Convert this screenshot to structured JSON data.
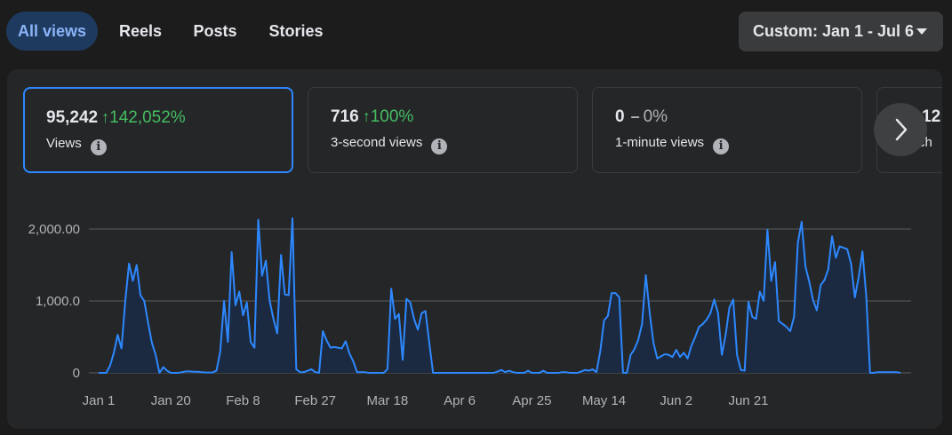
{
  "tabs": [
    {
      "label": "All views",
      "active": true
    },
    {
      "label": "Reels",
      "active": false
    },
    {
      "label": "Posts",
      "active": false
    },
    {
      "label": "Stories",
      "active": false
    }
  ],
  "date_range": {
    "label": "Custom: Jan 1 - Jul 6"
  },
  "metrics": [
    {
      "value": "95,242",
      "arrow": "↑",
      "change": "142,052%",
      "trend": "up",
      "label": "Views",
      "selected": true
    },
    {
      "value": "716",
      "arrow": "↑",
      "change": "100%",
      "trend": "up",
      "label": "3-second views",
      "selected": false
    },
    {
      "value": "0",
      "arrow": "–",
      "change": "0%",
      "trend": "flat",
      "label": "1-minute views",
      "selected": false
    },
    {
      "value": "12",
      "arrow": "",
      "change": "",
      "trend": "",
      "label": "ch",
      "selected": false
    }
  ],
  "colors": {
    "line": "#2d88ff",
    "fill": "#1b2a40",
    "up": "#45bd62",
    "gridline": "#5a5c5f"
  },
  "chart_data": {
    "type": "area",
    "x_start": "Jan 1",
    "x_ticks": [
      "Jan 1",
      "Jan 20",
      "Feb 8",
      "Feb 27",
      "Mar 18",
      "Apr 6",
      "Apr 25",
      "May 14",
      "Jun 2",
      "Jun 21"
    ],
    "y_ticks": [
      "0",
      "1,000.0",
      "2,000.00"
    ],
    "ylim": [
      0,
      2200
    ],
    "grid": true,
    "values": [
      0,
      0,
      0,
      100,
      280,
      530,
      340,
      1000,
      1520,
      1280,
      1500,
      1080,
      1000,
      700,
      420,
      250,
      0,
      80,
      30,
      0,
      0,
      0,
      10,
      20,
      20,
      15,
      15,
      10,
      5,
      5,
      5,
      30,
      300,
      1000,
      430,
      1680,
      940,
      1130,
      800,
      980,
      430,
      350,
      2130,
      1350,
      1560,
      1000,
      750,
      550,
      1640,
      1090,
      1080,
      2150,
      50,
      10,
      10,
      30,
      50,
      10,
      0,
      580,
      450,
      350,
      360,
      350,
      340,
      440,
      270,
      160,
      10,
      10,
      10,
      0,
      0,
      0,
      0,
      0,
      50,
      1170,
      750,
      820,
      180,
      1030,
      980,
      750,
      600,
      830,
      860,
      420,
      0,
      0,
      0,
      0,
      0,
      0,
      0,
      0,
      0,
      0,
      0,
      0,
      0,
      0,
      0,
      0,
      0,
      20,
      40,
      10,
      30,
      10,
      0,
      0,
      0,
      30,
      0,
      0,
      0,
      30,
      0,
      0,
      0,
      0,
      10,
      10,
      0,
      0,
      0,
      20,
      40,
      30,
      50,
      10,
      300,
      730,
      790,
      1110,
      1110,
      1050,
      0,
      0,
      250,
      330,
      460,
      680,
      1360,
      840,
      420,
      200,
      230,
      260,
      250,
      220,
      320,
      220,
      280,
      200,
      380,
      500,
      640,
      680,
      740,
      830,
      1020,
      830,
      250,
      530,
      910,
      1020,
      250,
      40,
      30,
      990,
      780,
      750,
      1130,
      1000,
      1990,
      1280,
      1540,
      720,
      680,
      640,
      580,
      780,
      1810,
      2100,
      1480,
      1270,
      1010,
      870,
      1220,
      1290,
      1440,
      1900,
      1600,
      1760,
      1740,
      1720,
      1520,
      1050,
      1330,
      1690,
      1070,
      0,
      0,
      10,
      10,
      10,
      10,
      10,
      10,
      0
    ]
  }
}
